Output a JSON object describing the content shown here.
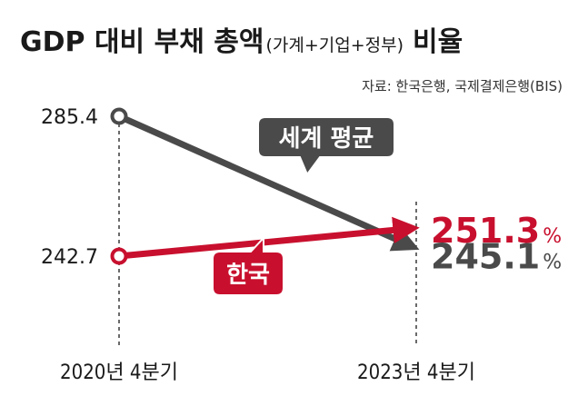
{
  "title": {
    "main": "GDP 대비 부채 총액",
    "paren": "(가계+기업+정부)",
    "tail": "비율"
  },
  "source": "자료: 한국은행, 국제결제은행(BIS)",
  "colors": {
    "world": "#4a4a4a",
    "korea": "#c8102e",
    "text": "#1a1a1a"
  },
  "chart_data": {
    "type": "line",
    "categories": [
      "2020년 4분기",
      "2023년 4분기"
    ],
    "series": [
      {
        "name": "세계 평균",
        "values": [
          285.4,
          245.1
        ],
        "value_labels": [
          "285.4",
          "245.1"
        ],
        "unit": "%"
      },
      {
        "name": "한국",
        "values": [
          242.7,
          251.3
        ],
        "value_labels": [
          "242.7",
          "251.3"
        ],
        "unit": "%"
      }
    ]
  }
}
